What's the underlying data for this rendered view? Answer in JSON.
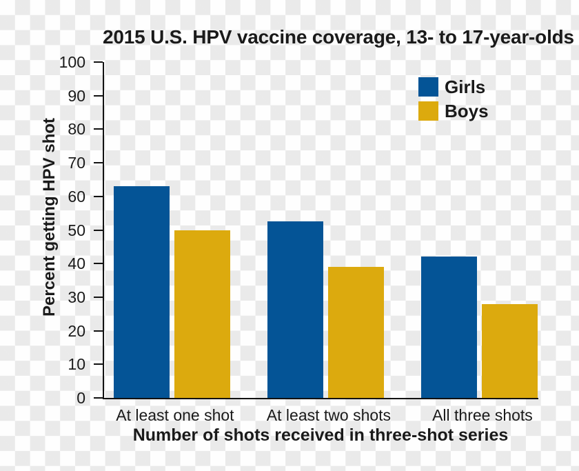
{
  "chart_data": {
    "type": "bar",
    "title": "2015 U.S. HPV vaccine coverage, 13- to 17-year-olds",
    "xlabel": "Number of shots received in three-shot series",
    "ylabel": "Percent getting HPV shot",
    "categories": [
      "At least one shot",
      "At least two shots",
      "All three shots"
    ],
    "series": [
      {
        "name": "Girls",
        "color": "#045496",
        "values": [
          63,
          52.5,
          42
        ]
      },
      {
        "name": "Boys",
        "color": "#dcaa0e",
        "values": [
          50,
          39,
          28
        ]
      }
    ],
    "ylim": [
      0,
      100
    ],
    "ytick_step": 10,
    "grid": false,
    "legend_position": "top-right"
  },
  "colors": {
    "text": "#1a1a1a",
    "axis": "#111111",
    "checker_gray": "#eaeaea",
    "checker_white": "#fefefe"
  }
}
